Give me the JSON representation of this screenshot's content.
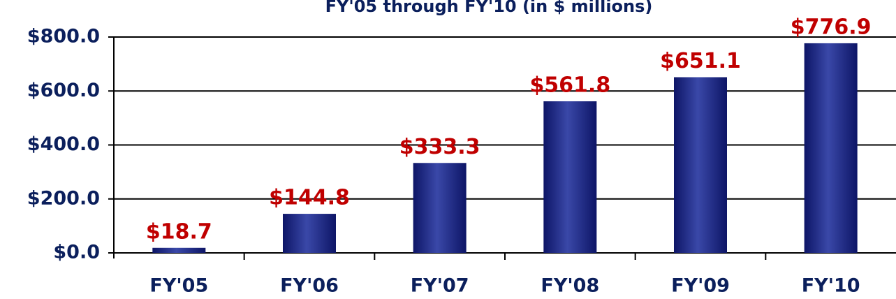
{
  "chart_data": {
    "type": "bar",
    "title": "FY'05 through FY'10 (in $ millions)",
    "categories": [
      "FY'05",
      "FY'06",
      "FY'07",
      "FY'08",
      "FY'09",
      "FY'10"
    ],
    "values": [
      18.7,
      144.8,
      333.3,
      561.8,
      651.1,
      776.9
    ],
    "value_labels": [
      "$18.7",
      "$144.8",
      "$333.3",
      "$561.8",
      "$651.1",
      "$776.9"
    ],
    "color": "#0d1566",
    "ylim": [
      0,
      800
    ],
    "yticks": [
      {
        "value": 0,
        "label": "$0.0"
      },
      {
        "value": 200,
        "label": "$200.0"
      },
      {
        "value": 400,
        "label": "$400.0"
      },
      {
        "value": 600,
        "label": "$600.0"
      },
      {
        "value": 800,
        "label": "$800.0"
      }
    ],
    "grid": true
  }
}
